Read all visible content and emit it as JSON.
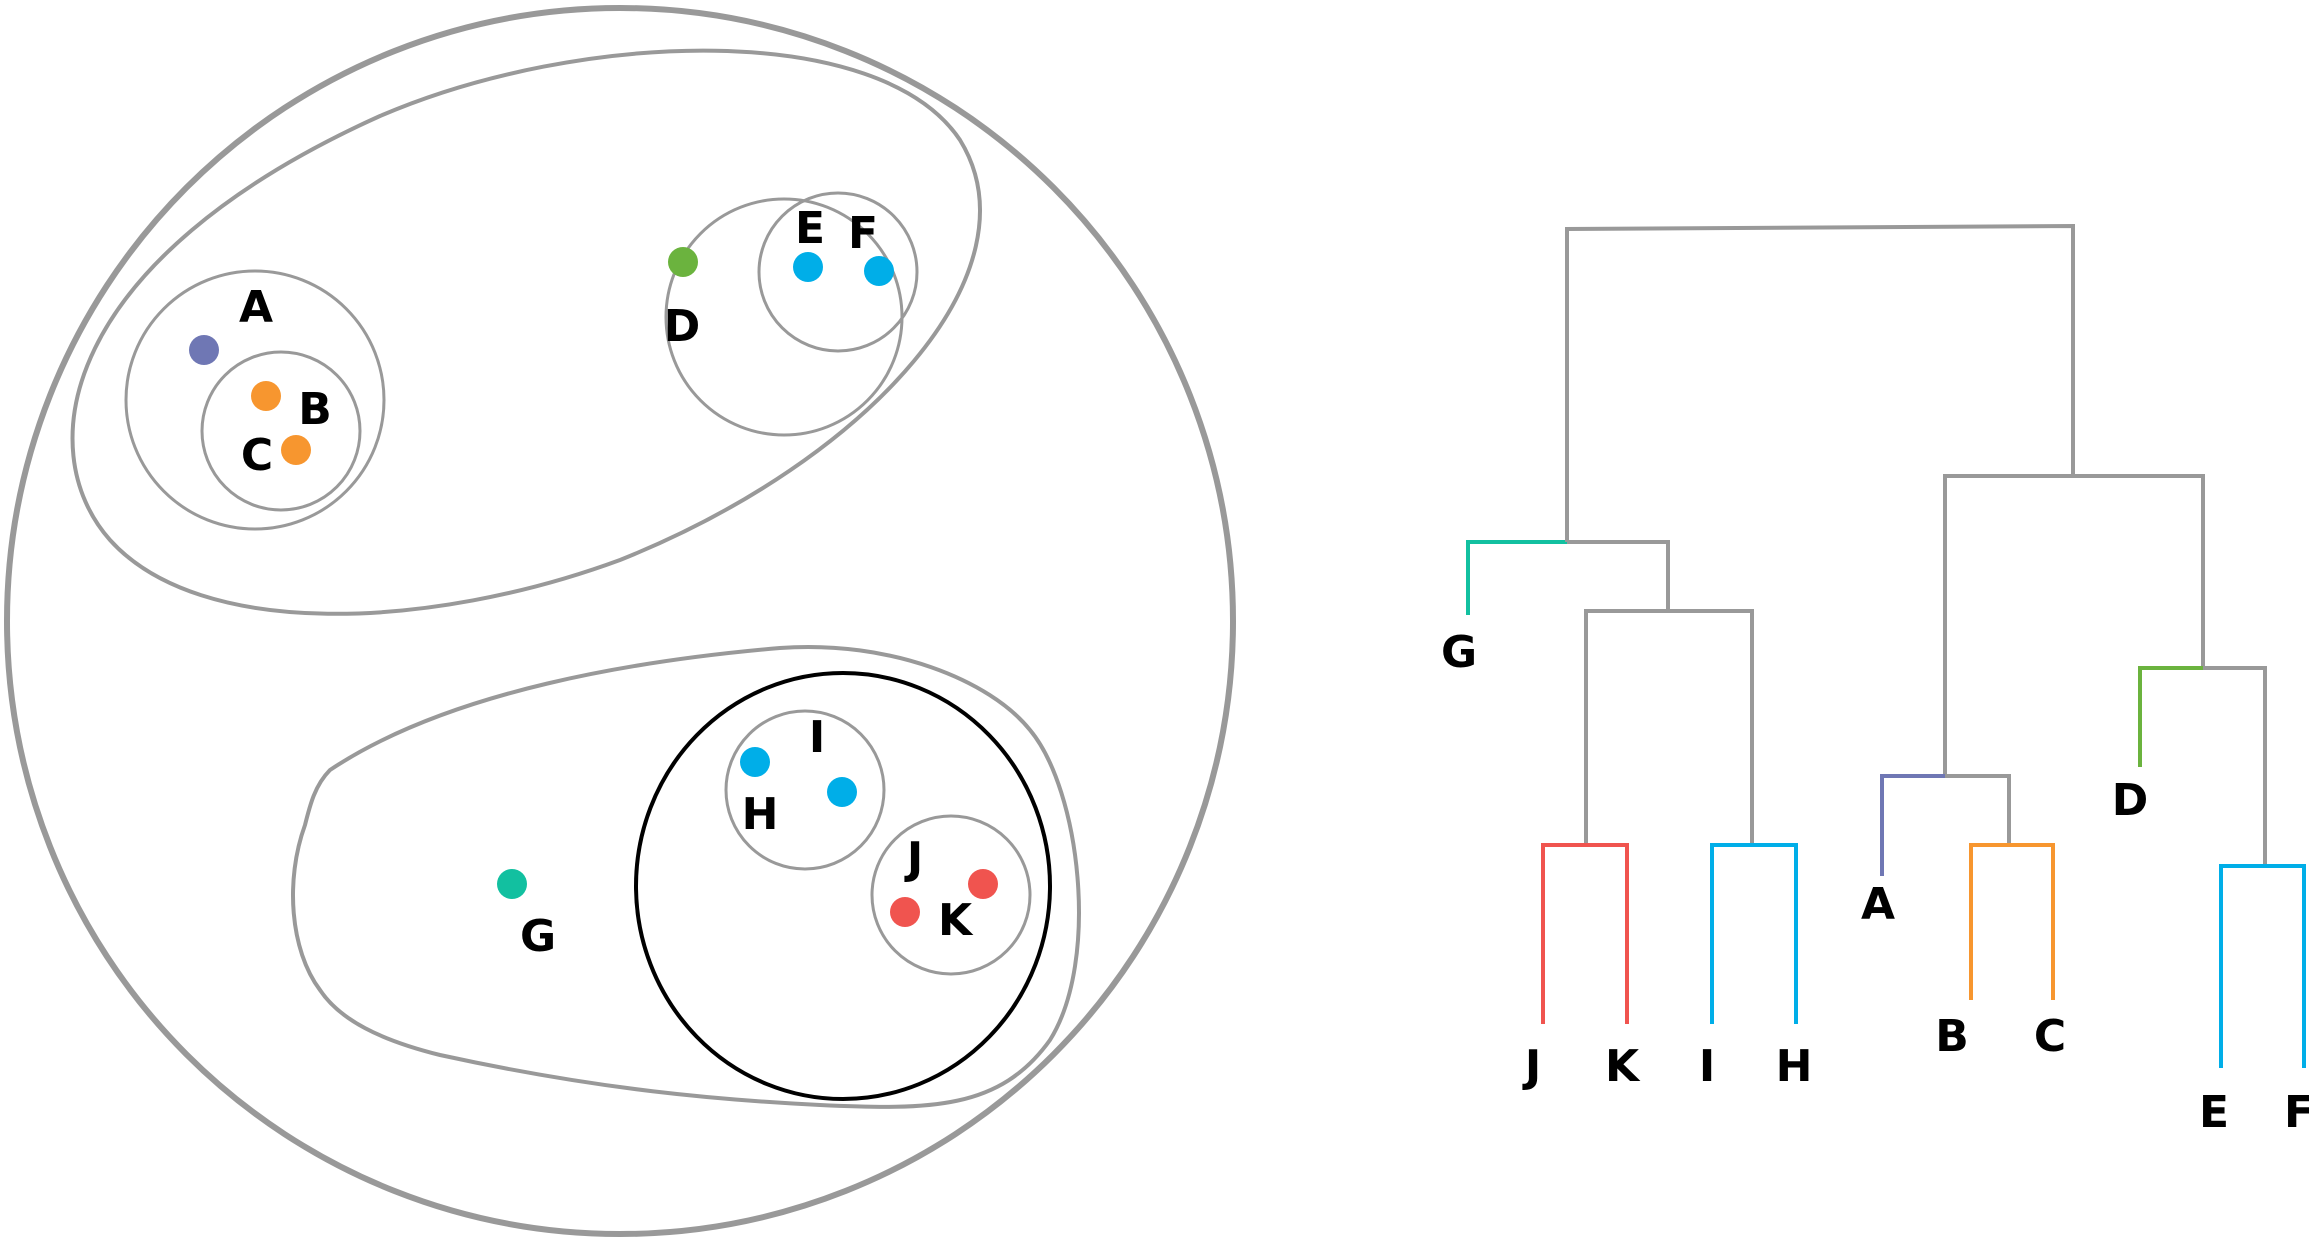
{
  "colors": {
    "frame": "#999999",
    "highlight_ring": "#000000",
    "purple": "#6f77b4",
    "orange": "#f7962f",
    "green": "#6bb33e",
    "blue": "#00aee8",
    "teal": "#12c0a0",
    "red": "#f0544f"
  },
  "points": [
    {
      "id": "A",
      "label": "A",
      "color": "purple"
    },
    {
      "id": "B",
      "label": "B",
      "color": "orange"
    },
    {
      "id": "C",
      "label": "C",
      "color": "orange"
    },
    {
      "id": "D",
      "label": "D",
      "color": "green"
    },
    {
      "id": "E",
      "label": "E",
      "color": "blue"
    },
    {
      "id": "F",
      "label": "F",
      "color": "blue"
    },
    {
      "id": "G",
      "label": "G",
      "color": "teal"
    },
    {
      "id": "H",
      "label": "H",
      "color": "blue"
    },
    {
      "id": "I",
      "label": "I",
      "color": "blue"
    },
    {
      "id": "J",
      "label": "J",
      "color": "red"
    },
    {
      "id": "K",
      "label": "K",
      "color": "red"
    }
  ],
  "dendrogram": {
    "leaves": [
      {
        "id": "G",
        "label": "G"
      },
      {
        "id": "J",
        "label": "J"
      },
      {
        "id": "K",
        "label": "K"
      },
      {
        "id": "I",
        "label": "I"
      },
      {
        "id": "H",
        "label": "H"
      },
      {
        "id": "A",
        "label": "A"
      },
      {
        "id": "B",
        "label": "B"
      },
      {
        "id": "C",
        "label": "C"
      },
      {
        "id": "D",
        "label": "D"
      },
      {
        "id": "E",
        "label": "E"
      },
      {
        "id": "F",
        "label": "F"
      }
    ]
  }
}
